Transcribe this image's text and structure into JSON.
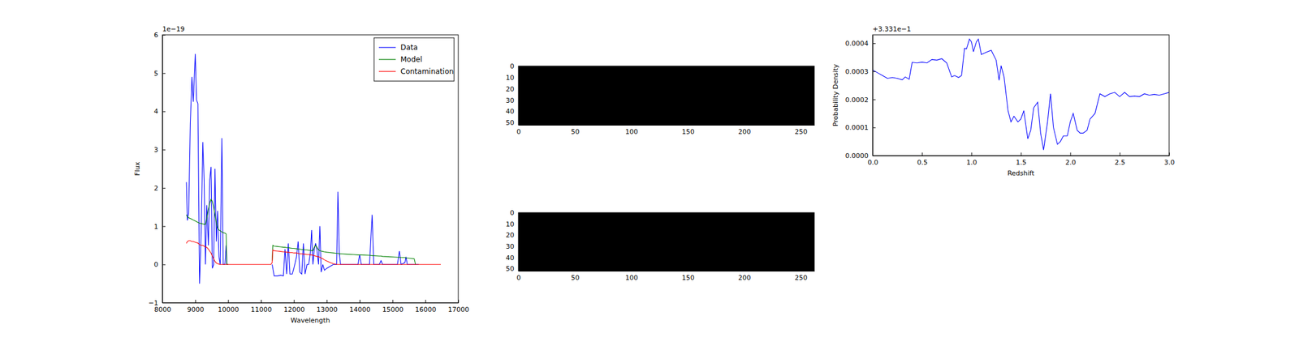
{
  "chart_data": [
    {
      "type": "line",
      "xlabel": "Wavelength",
      "ylabel": "Flux",
      "y_offset_text": "1e−19",
      "xlim": [
        8000,
        17000
      ],
      "ylim": [
        -1,
        6
      ],
      "xticks": [
        8000,
        9000,
        10000,
        11000,
        12000,
        13000,
        14000,
        15000,
        16000,
        17000
      ],
      "yticks": [
        {
          "value": -1,
          "label": "−1"
        },
        0,
        1,
        2,
        3,
        4,
        5,
        6
      ],
      "legend": "upper right",
      "x": [
        8730,
        8760,
        8800,
        8850,
        8900,
        8940,
        9000,
        9040,
        9080,
        9130,
        9180,
        9230,
        9270,
        9310,
        9350,
        9400,
        9440,
        9480,
        9520,
        9560,
        9600,
        9640,
        9680,
        9720,
        9760,
        9810,
        9850,
        9900,
        9940,
        9960,
        10000,
        10500,
        11000,
        11300,
        11340,
        11360,
        11400,
        11500,
        11600,
        11680,
        11730,
        11780,
        11830,
        11880,
        11950,
        12000,
        12080,
        12130,
        12180,
        12240,
        12290,
        12340,
        12400,
        12450,
        12500,
        12540,
        12580,
        12620,
        12660,
        12700,
        12750,
        12790,
        12830,
        12880,
        12930,
        13000,
        13100,
        13200,
        13300,
        13340,
        13380,
        13420,
        13600,
        13800,
        13950,
        14000,
        14050,
        14300,
        14380,
        14430,
        14600,
        14650,
        14700,
        15150,
        15210,
        15260,
        15380,
        15410,
        15450,
        15660,
        15700,
        15800,
        16000,
        16470
      ],
      "series": [
        {
          "name": "Data",
          "color": "#0000ff",
          "values": [
            2.15,
            1.15,
            1.35,
            3.7,
            4.9,
            4.25,
            5.5,
            4.3,
            4.2,
            -0.5,
            0.8,
            3.2,
            2.2,
            0,
            1.55,
            0.5,
            2.2,
            2.55,
            -0.1,
            0,
            2.5,
            0.6,
            1.4,
            0.2,
            0,
            3.3,
            0,
            0,
            0.5,
            0,
            0,
            null,
            null,
            null,
            0,
            -0.1,
            -0.3,
            -0.3,
            -0.28,
            -0.3,
            0.4,
            -0.25,
            0.55,
            -0.25,
            -0.25,
            -0.1,
            0.2,
            0.6,
            -0.2,
            -0.25,
            0.55,
            -0.25,
            0,
            0,
            0.3,
            0.9,
            0,
            0.4,
            0.55,
            0.4,
            0,
            1.0,
            -0.2,
            0,
            -0.15,
            -0.1,
            -0.05,
            0,
            0,
            1.9,
            0.3,
            0,
            0,
            0,
            0,
            0.25,
            0,
            0,
            1.3,
            0,
            0,
            0.1,
            0,
            0,
            0.35,
            0,
            0.05,
            0.2,
            0,
            0,
            0,
            0,
            null,
            null
          ]
        },
        {
          "name": "Model",
          "color": "#008000",
          "values": [
            1.3,
            1.25,
            1.22,
            1.2,
            1.18,
            1.16,
            1.14,
            1.12,
            1.1,
            1.08,
            1.07,
            1.06,
            1.05,
            1.05,
            1.2,
            1.45,
            1.6,
            1.7,
            1.65,
            1.5,
            1.3,
            1.1,
            0.95,
            0.9,
            0.88,
            0.85,
            0.83,
            0.82,
            0.8,
            0,
            0,
            null,
            null,
            null,
            0.1,
            0.5,
            0.48,
            0.47,
            0.46,
            0.45,
            0.45,
            0.44,
            0.44,
            0.43,
            0.42,
            0.42,
            0.41,
            0.4,
            0.4,
            0.39,
            0.39,
            0.38,
            0.38,
            0.37,
            0.37,
            0.36,
            0.36,
            0.45,
            0.5,
            0.45,
            0.38,
            0.36,
            0.35,
            0.34,
            0.33,
            0.32,
            0.31,
            0.3,
            0.29,
            0.29,
            0.28,
            0.28,
            0.27,
            0.26,
            0.25,
            0.25,
            0.25,
            0.24,
            0.23,
            0.23,
            0.22,
            0.22,
            0.21,
            0.19,
            0.19,
            0.18,
            0.18,
            0.17,
            0.17,
            0.15,
            0,
            null,
            null,
            null
          ]
        },
        {
          "name": "Contamination",
          "color": "#ff0000",
          "values": [
            0.55,
            0.6,
            0.62,
            0.62,
            0.6,
            0.6,
            0.58,
            0.57,
            0.56,
            0.52,
            0.5,
            0.5,
            0.48,
            0.46,
            0.45,
            0.4,
            0.35,
            0.3,
            0.22,
            0.15,
            0.08,
            0.04,
            0.02,
            0.01,
            0,
            0,
            0,
            0,
            0,
            0,
            0,
            0,
            0,
            0,
            0.05,
            0.38,
            0.36,
            0.35,
            0.34,
            0.33,
            0.33,
            0.32,
            0.32,
            0.31,
            0.31,
            0.3,
            0.3,
            0.29,
            0.28,
            0.28,
            0.27,
            0.27,
            0.26,
            0.26,
            0.25,
            0.25,
            0.24,
            0.23,
            0.22,
            0.21,
            0.2,
            0.19,
            0.17,
            0.15,
            0.12,
            0.09,
            0.05,
            0.02,
            0,
            0,
            0,
            0,
            0,
            0,
            0,
            0,
            0,
            0,
            0,
            0,
            0,
            0,
            0,
            0,
            0,
            0,
            0,
            0,
            0,
            0,
            0,
            0,
            0,
            0
          ]
        }
      ]
    },
    {
      "type": "heatmap",
      "cells": [
        [
          0
        ]
      ],
      "color": "#000000",
      "xlim": [
        0,
        262
      ],
      "ylim": [
        52,
        0
      ],
      "xticks": [
        0,
        50,
        100,
        150,
        200,
        250
      ],
      "yticks": [
        0,
        10,
        20,
        30,
        40,
        50
      ]
    },
    {
      "type": "heatmap",
      "cells": [
        [
          0
        ]
      ],
      "color": "#000000",
      "xlim": [
        0,
        262
      ],
      "ylim": [
        52,
        0
      ],
      "xticks": [
        0,
        50,
        100,
        150,
        200,
        250
      ],
      "yticks": [
        0,
        10,
        20,
        30,
        40,
        50
      ]
    },
    {
      "type": "line",
      "xlabel": "Redshift",
      "ylabel": "Probability Density",
      "y_offset_text": "+3.331e−1",
      "xlim": [
        0,
        3
      ],
      "ylim": [
        0,
        0.00043
      ],
      "xticks": [
        {
          "value": 0,
          "label": "0.0"
        },
        0.5,
        {
          "value": 1,
          "label": "1.0"
        },
        1.5,
        {
          "value": 2,
          "label": "2.0"
        },
        2.5,
        {
          "value": 3,
          "label": "3.0"
        }
      ],
      "yticks": [
        {
          "value": 0,
          "label": "0.0000"
        },
        {
          "value": 0.0001,
          "label": "0.0001"
        },
        {
          "value": 0.0002,
          "label": "0.0002"
        },
        {
          "value": 0.0003,
          "label": "0.0003"
        },
        {
          "value": 0.0004,
          "label": "0.0004"
        }
      ],
      "color": "#0000ff",
      "x": [
        0,
        0.05,
        0.1,
        0.15,
        0.2,
        0.25,
        0.3,
        0.33,
        0.37,
        0.4,
        0.45,
        0.5,
        0.55,
        0.6,
        0.65,
        0.7,
        0.75,
        0.8,
        0.83,
        0.87,
        0.9,
        0.93,
        0.95,
        0.98,
        1.0,
        1.02,
        1.05,
        1.07,
        1.1,
        1.15,
        1.2,
        1.25,
        1.28,
        1.3,
        1.33,
        1.37,
        1.4,
        1.43,
        1.47,
        1.5,
        1.53,
        1.57,
        1.6,
        1.63,
        1.67,
        1.7,
        1.73,
        1.77,
        1.8,
        1.83,
        1.87,
        1.9,
        1.93,
        1.97,
        2.0,
        2.03,
        2.07,
        2.1,
        2.13,
        2.17,
        2.2,
        2.25,
        2.3,
        2.35,
        2.4,
        2.45,
        2.5,
        2.55,
        2.6,
        2.65,
        2.7,
        2.75,
        2.8,
        2.85,
        2.9,
        2.95,
        3.0
      ],
      "values": [
        0.000305,
        0.000295,
        0.000285,
        0.000275,
        0.000278,
        0.000275,
        0.00027,
        0.00028,
        0.000272,
        0.000332,
        0.00033,
        0.000333,
        0.00033,
        0.000342,
        0.00034,
        0.000345,
        0.00033,
        0.00028,
        0.000285,
        0.000278,
        0.000285,
        0.000382,
        0.00038,
        0.000415,
        0.000405,
        0.00037,
        0.000405,
        0.000415,
        0.00036,
        0.000368,
        0.000375,
        0.00034,
        0.000268,
        0.00032,
        0.00028,
        0.00016,
        0.00012,
        0.00014,
        0.00012,
        0.00013,
        0.00016,
        6e-05,
        9e-05,
        0.00017,
        0.00019,
        8e-05,
        2e-05,
        0.00012,
        0.00022,
        0.0001,
        4e-05,
        5e-05,
        7e-05,
        7e-05,
        0.00012,
        0.00015,
        9e-05,
        8e-05,
        8e-05,
        9e-05,
        0.00013,
        0.00015,
        0.00022,
        0.00021,
        0.00022,
        0.000225,
        0.00021,
        0.000225,
        0.00021,
        0.000212,
        0.00021,
        0.00022,
        0.000215,
        0.000218,
        0.000215,
        0.00022,
        0.000225
      ]
    }
  ]
}
